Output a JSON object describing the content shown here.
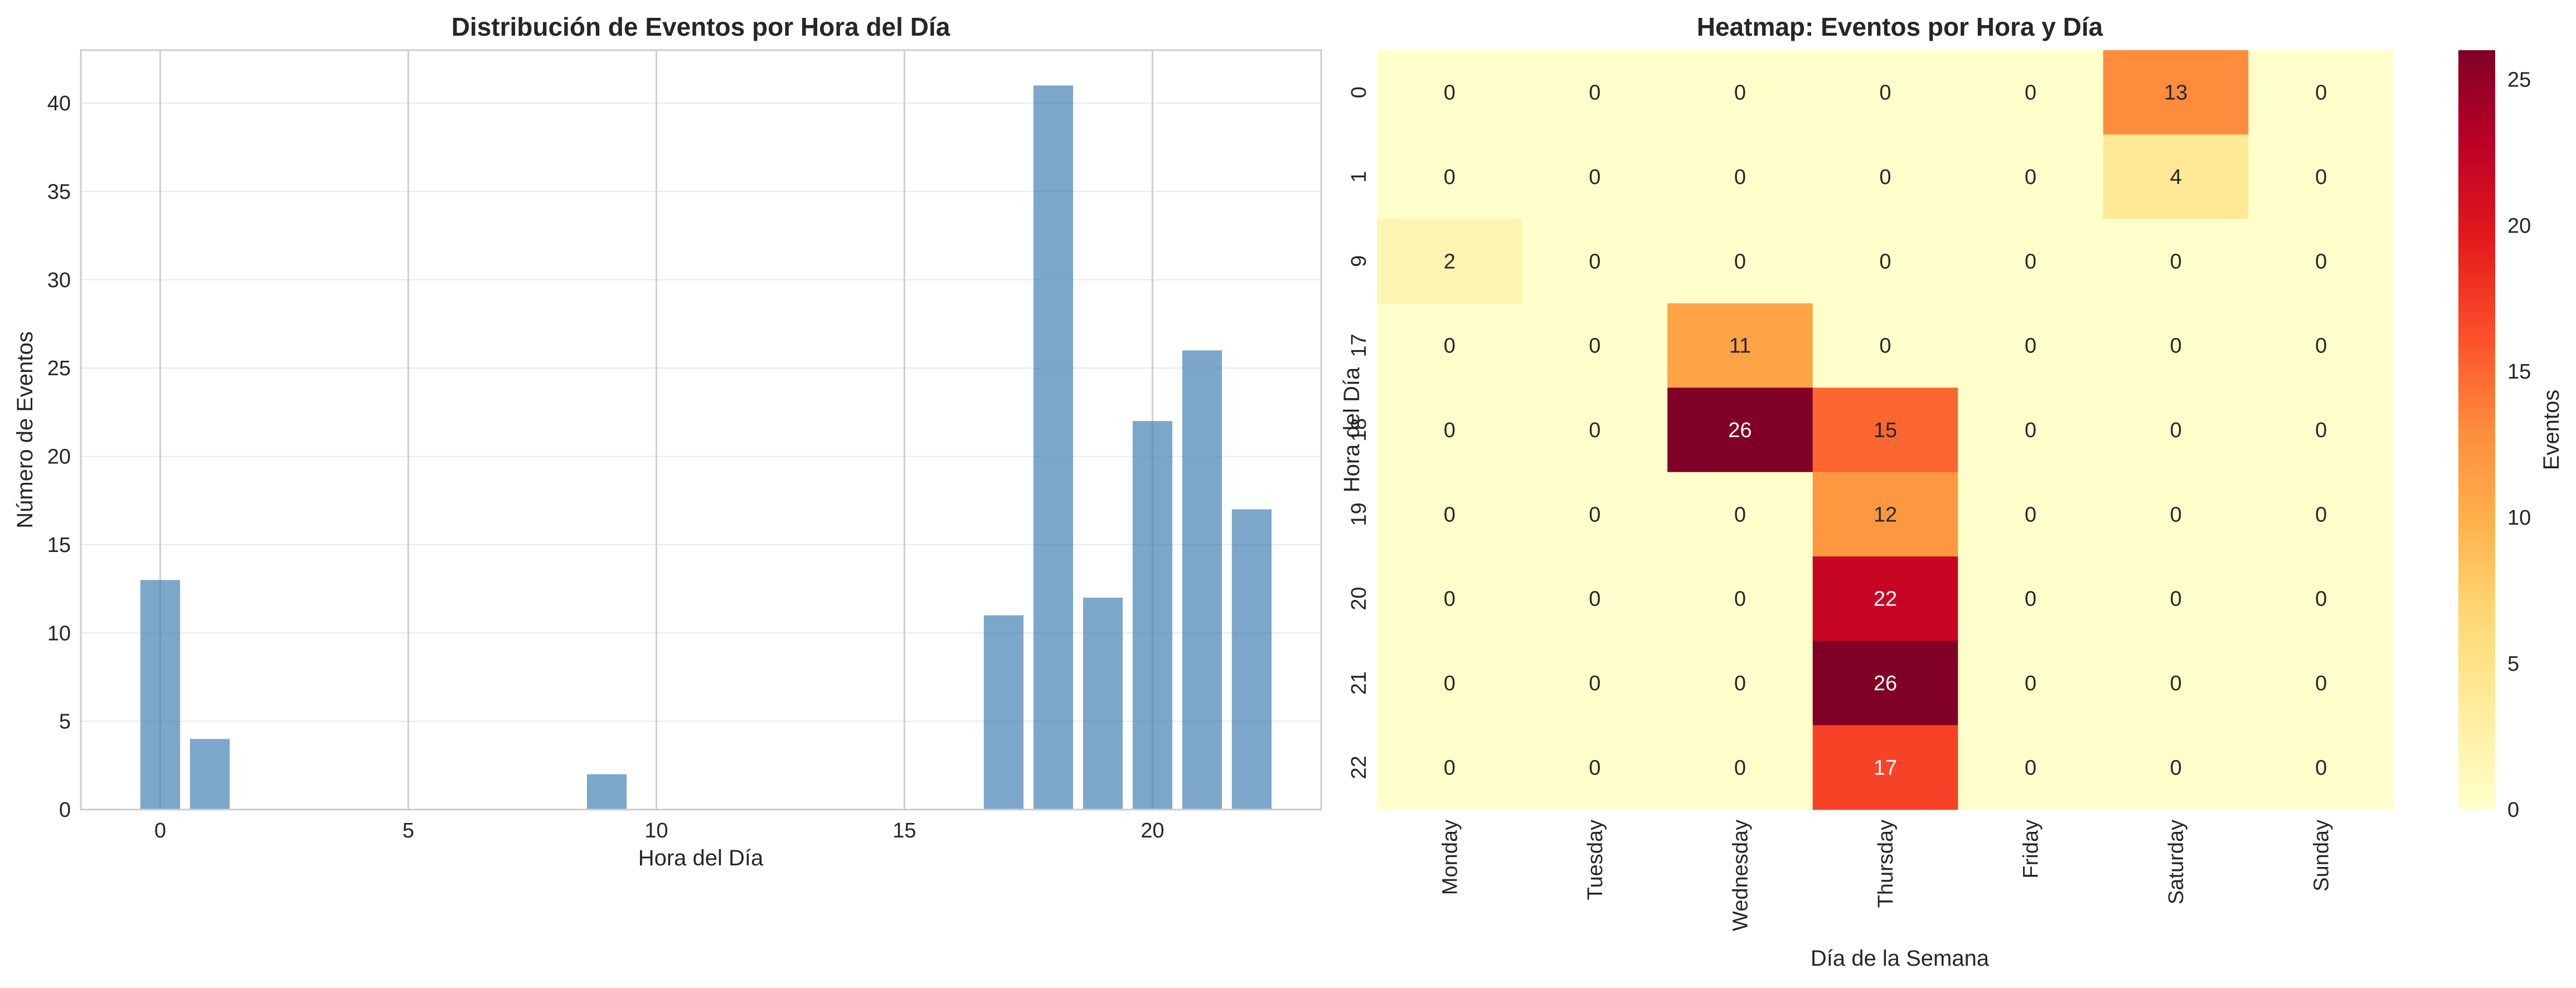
{
  "chart_data": [
    {
      "type": "bar",
      "title": "Distribución de Eventos por Hora del Día",
      "xlabel": "Hora del Día",
      "ylabel": "Número de Eventos",
      "x": [
        0,
        1,
        9,
        17,
        18,
        19,
        20,
        21,
        22
      ],
      "values": [
        13,
        4,
        2,
        11,
        41,
        12,
        22,
        26,
        17
      ],
      "xticks": [
        0,
        5,
        10,
        15,
        20
      ],
      "yticks": [
        0,
        5,
        10,
        15,
        20,
        25,
        30,
        35,
        40
      ],
      "xlim": [
        -1.6,
        23.4
      ],
      "ylim": [
        0,
        43
      ],
      "grid": true,
      "bar_color": "#4682B4"
    },
    {
      "type": "heatmap",
      "title": "Heatmap: Eventos por Hora y Día",
      "xlabel": "Día de la Semana",
      "ylabel": "Hora del Día",
      "x_categories": [
        "Monday",
        "Tuesday",
        "Wednesday",
        "Thursday",
        "Friday",
        "Saturday",
        "Sunday"
      ],
      "y_categories": [
        "0",
        "1",
        "9",
        "17",
        "18",
        "19",
        "20",
        "21",
        "22"
      ],
      "values": [
        [
          0,
          0,
          0,
          0,
          0,
          13,
          0
        ],
        [
          0,
          0,
          0,
          0,
          0,
          4,
          0
        ],
        [
          2,
          0,
          0,
          0,
          0,
          0,
          0
        ],
        [
          0,
          0,
          11,
          0,
          0,
          0,
          0
        ],
        [
          0,
          0,
          26,
          15,
          0,
          0,
          0
        ],
        [
          0,
          0,
          0,
          12,
          0,
          0,
          0
        ],
        [
          0,
          0,
          0,
          22,
          0,
          0,
          0
        ],
        [
          0,
          0,
          0,
          26,
          0,
          0,
          0
        ],
        [
          0,
          0,
          0,
          17,
          0,
          0,
          0
        ]
      ],
      "colormap": "YlOrRd",
      "vmin": 0,
      "vmax": 26,
      "colorbar_label": "Eventos",
      "colorbar_ticks": [
        0,
        5,
        10,
        15,
        20,
        25
      ]
    }
  ]
}
